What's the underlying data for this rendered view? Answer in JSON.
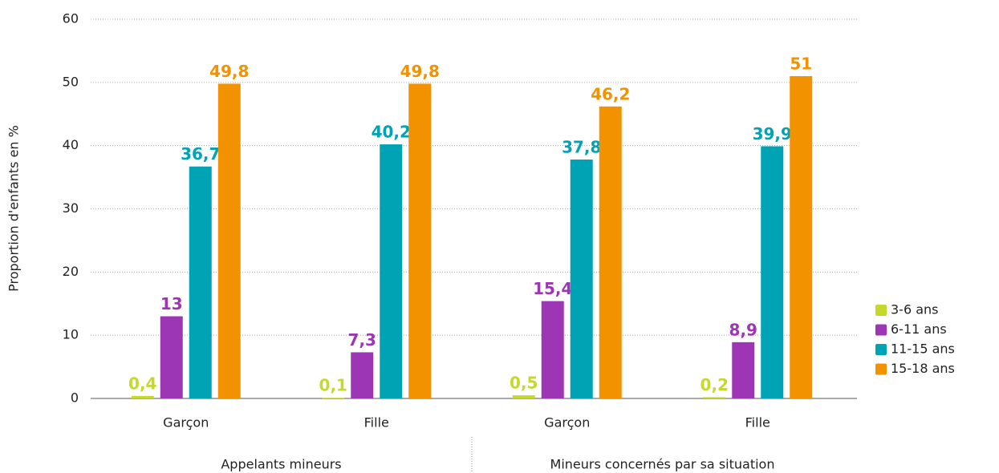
{
  "chart_data": {
    "type": "bar",
    "y_label": "Proportion d'enfants en %",
    "categories": [
      "Garçon",
      "Fille",
      "Garçon",
      "Fille"
    ],
    "groups": [
      "Appelants mineurs",
      "Mineurs concernés par sa situation"
    ],
    "series": [
      {
        "name": "3-6 ans",
        "color": "#c5d92d",
        "values": [
          0.4,
          0.1,
          0.5,
          0.2
        ],
        "value_labels": [
          "0,4",
          "0,1",
          "0,5",
          "0,2"
        ]
      },
      {
        "name": "6-11 ans",
        "color": "#9c36b5",
        "values": [
          13,
          7.3,
          15.4,
          8.9
        ],
        "value_labels": [
          "13",
          "7,3",
          "15,4",
          "8,9"
        ]
      },
      {
        "name": "11-15 ans",
        "color": "#00a3b4",
        "values": [
          36.7,
          40.2,
          37.8,
          39.9
        ],
        "value_labels": [
          "36,7",
          "40,2",
          "37,8",
          "39,9"
        ]
      },
      {
        "name": "15-18 ans",
        "color": "#f39200",
        "values": [
          49.8,
          49.8,
          46.2,
          51
        ],
        "value_labels": [
          "49,8",
          "49,8",
          "46,2",
          "51"
        ]
      }
    ],
    "ylim": [
      0,
      60
    ],
    "yticks": [
      0,
      10,
      20,
      30,
      40,
      50,
      60
    ],
    "grid": true,
    "legend": "right"
  }
}
